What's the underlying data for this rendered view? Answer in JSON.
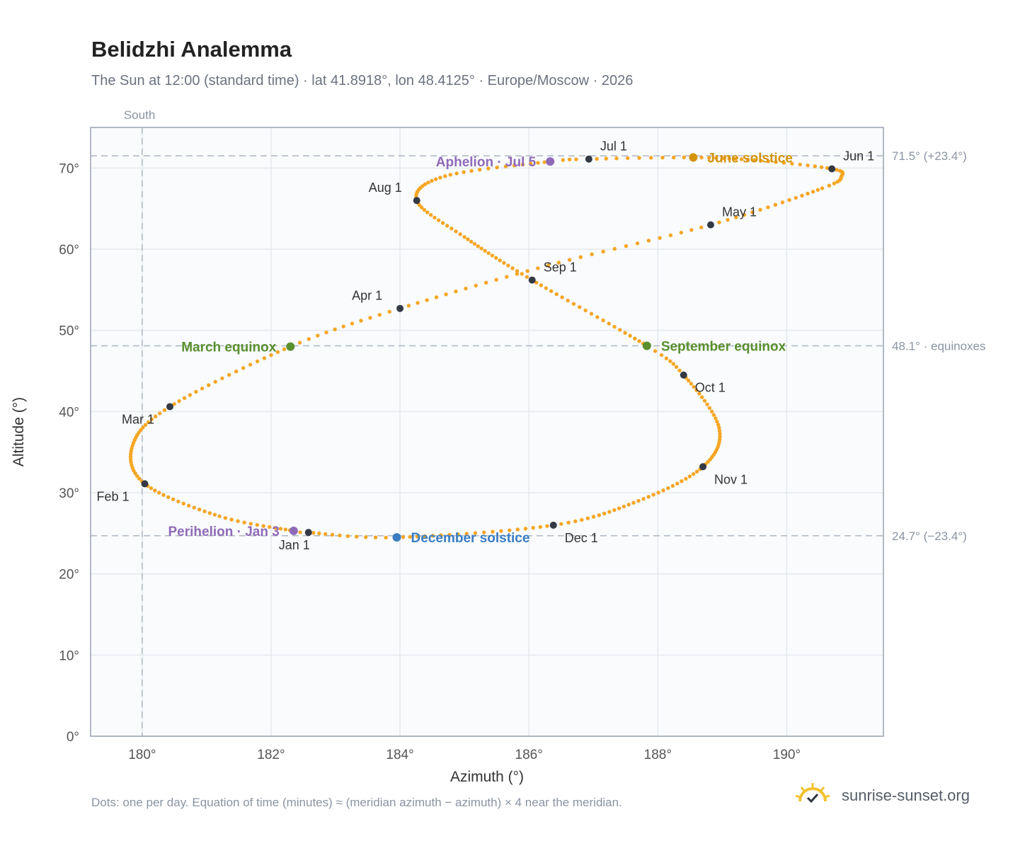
{
  "header": {
    "title": "Belidzhi Analemma",
    "subtitle": "The Sun at 12:00 (standard time) · lat 41.8918°, lon 48.4125° · Europe/Moscow · 2026"
  },
  "footer": {
    "note": "Dots: one per day. Equation of time (minutes) ≈ (meridian azimuth − azimuth) × 4 near the meridian.",
    "brand": "sunrise-sunset.org",
    "logo_icon": "sun-logo-icon"
  },
  "colors": {
    "curve": "#f5a623",
    "month_marker": "#333a44",
    "june_solstice": "#d4930a",
    "december_solstice": "#3a7dc2",
    "equinox": "#5a8f2e",
    "apsis": "#8e6ab8",
    "grid": "#e6e9ee",
    "plot_bg": "#f9fbfd",
    "axis": "#9aa3b1",
    "reference_line": "#aeb7c3"
  },
  "chart_data": {
    "type": "scatter",
    "title": "Belidzhi Analemma",
    "xlabel": "Azimuth (°)",
    "ylabel": "Altitude (°)",
    "xlim": [
      179.2,
      191.5
    ],
    "ylim": [
      0,
      75
    ],
    "x_ticks": [
      180,
      182,
      184,
      186,
      188,
      190
    ],
    "x_tick_labels": [
      "180°",
      "182°",
      "184°",
      "186°",
      "188°",
      "190°"
    ],
    "y_ticks": [
      0,
      10,
      20,
      30,
      40,
      50,
      60,
      70
    ],
    "y_tick_labels": [
      "0°",
      "10°",
      "20°",
      "30°",
      "40°",
      "50°",
      "60°",
      "70°"
    ],
    "grid": true,
    "south_line": {
      "azimuth": 180,
      "label": "South"
    },
    "reference_lines": [
      {
        "altitude": 71.5,
        "label": "71.5° (+23.4°)"
      },
      {
        "altitude": 48.1,
        "label": "48.1° · equinoxes"
      },
      {
        "altitude": 24.7,
        "label": "24.7° (−23.4°)"
      }
    ],
    "analemma_knots": [
      {
        "day": 1,
        "az": 182.58,
        "alt": 25.1
      },
      {
        "day": 3,
        "az": 182.35,
        "alt": 25.3
      },
      {
        "day": 16,
        "az": 181.2,
        "alt": 27.1
      },
      {
        "day": 32,
        "az": 180.04,
        "alt": 31.1
      },
      {
        "day": 46,
        "az": 179.85,
        "alt": 35.8
      },
      {
        "day": 60,
        "az": 180.43,
        "alt": 40.6
      },
      {
        "day": 79,
        "az": 182.3,
        "alt": 48.0
      },
      {
        "day": 91,
        "az": 184.0,
        "alt": 52.7
      },
      {
        "day": 106,
        "az": 186.3,
        "alt": 58.0
      },
      {
        "day": 121,
        "az": 188.82,
        "alt": 63.0
      },
      {
        "day": 137,
        "az": 190.55,
        "alt": 67.5
      },
      {
        "day": 145,
        "az": 190.85,
        "alt": 69.0
      },
      {
        "day": 152,
        "az": 190.7,
        "alt": 69.9
      },
      {
        "day": 162,
        "az": 189.6,
        "alt": 70.9
      },
      {
        "day": 172,
        "az": 188.55,
        "alt": 71.3
      },
      {
        "day": 182,
        "az": 186.93,
        "alt": 71.1
      },
      {
        "day": 186,
        "az": 186.33,
        "alt": 70.8
      },
      {
        "day": 200,
        "az": 184.7,
        "alt": 69.0
      },
      {
        "day": 213,
        "az": 184.26,
        "alt": 66.0
      },
      {
        "day": 227,
        "az": 185.0,
        "alt": 61.5
      },
      {
        "day": 244,
        "az": 186.05,
        "alt": 56.2
      },
      {
        "day": 266,
        "az": 187.83,
        "alt": 48.1
      },
      {
        "day": 274,
        "az": 188.4,
        "alt": 44.5
      },
      {
        "day": 290,
        "az": 188.95,
        "alt": 38.0
      },
      {
        "day": 305,
        "az": 188.7,
        "alt": 33.2
      },
      {
        "day": 320,
        "az": 187.7,
        "alt": 29.0
      },
      {
        "day": 335,
        "az": 186.38,
        "alt": 26.0
      },
      {
        "day": 355,
        "az": 183.95,
        "alt": 24.5
      },
      {
        "day": 366,
        "az": 182.58,
        "alt": 25.1
      }
    ],
    "month_markers": [
      {
        "label": "Jan 1",
        "az": 182.58,
        "alt": 25.1,
        "label_pos": "below"
      },
      {
        "label": "Feb 1",
        "az": 180.04,
        "alt": 31.1,
        "label_pos": "below-left"
      },
      {
        "label": "Mar 1",
        "az": 180.43,
        "alt": 40.6,
        "label_pos": "below-left"
      },
      {
        "label": "Apr 1",
        "az": 184.0,
        "alt": 52.7,
        "label_pos": "above-left"
      },
      {
        "label": "May 1",
        "az": 188.82,
        "alt": 63.0,
        "label_pos": "above-right"
      },
      {
        "label": "Jun 1",
        "az": 190.7,
        "alt": 69.9,
        "label_pos": "above-right"
      },
      {
        "label": "Jul 1",
        "az": 186.93,
        "alt": 71.1,
        "label_pos": "above-right"
      },
      {
        "label": "Aug 1",
        "az": 184.26,
        "alt": 66.0,
        "label_pos": "above-left"
      },
      {
        "label": "Sep 1",
        "az": 186.05,
        "alt": 56.2,
        "label_pos": "above-right"
      },
      {
        "label": "Oct 1",
        "az": 188.4,
        "alt": 44.5,
        "label_pos": "below-right"
      },
      {
        "label": "Nov 1",
        "az": 188.7,
        "alt": 33.2,
        "label_pos": "below-right"
      },
      {
        "label": "Dec 1",
        "az": 186.38,
        "alt": 26.0,
        "label_pos": "below-right"
      }
    ],
    "events": [
      {
        "label": "June solstice",
        "az": 188.55,
        "alt": 71.3,
        "color_key": "june_solstice",
        "label_side": "right"
      },
      {
        "label": "December solstice",
        "az": 183.95,
        "alt": 24.5,
        "color_key": "december_solstice",
        "label_side": "right"
      },
      {
        "label": "March equinox",
        "az": 182.3,
        "alt": 48.0,
        "color_key": "equinox",
        "label_side": "left"
      },
      {
        "label": "September equinox",
        "az": 187.83,
        "alt": 48.1,
        "color_key": "equinox",
        "label_side": "right"
      },
      {
        "label": "Perihelion · Jan 3",
        "az": 182.35,
        "alt": 25.3,
        "color_key": "apsis",
        "label_side": "left"
      },
      {
        "label": "Aphelion · Jul 5",
        "az": 186.33,
        "alt": 70.8,
        "color_key": "apsis",
        "label_side": "left"
      }
    ]
  }
}
